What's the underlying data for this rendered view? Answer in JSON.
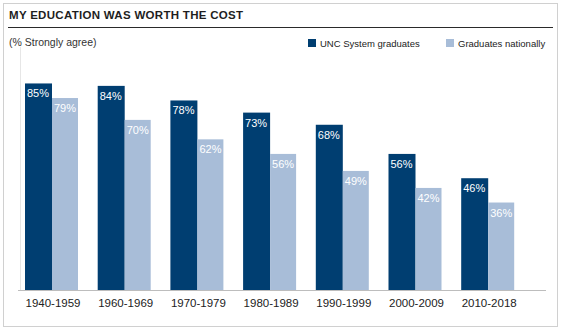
{
  "chart_data": {
    "type": "bar",
    "title": "MY EDUCATION WAS WORTH THE COST",
    "subtitle": "(% Strongly agree)",
    "categories": [
      "1940-1959",
      "1960-1969",
      "1970-1979",
      "1980-1989",
      "1990-1999",
      "2000-2009",
      "2010-2018"
    ],
    "series": [
      {
        "name": "UNC System graduates",
        "color": "#003e71",
        "values": [
          85,
          84,
          78,
          73,
          68,
          56,
          46
        ],
        "value_labels": [
          "85%",
          "84%",
          "78%",
          "73%",
          "68%",
          "56%",
          "46%"
        ]
      },
      {
        "name": "Graduates nationally",
        "color": "#a8bdd8",
        "values": [
          79,
          70,
          62,
          56,
          49,
          42,
          36
        ],
        "value_labels": [
          "79%",
          "70%",
          "62%",
          "56%",
          "49%",
          "42%",
          "36%"
        ]
      }
    ],
    "ylim": [
      0,
      100
    ],
    "grid": false,
    "legend": "top-right",
    "data_labels": true,
    "tick_labels": "x"
  }
}
